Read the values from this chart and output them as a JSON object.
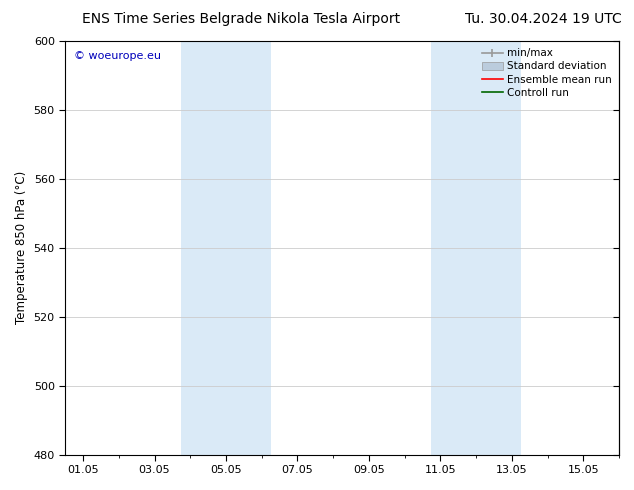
{
  "title_left": "ENS Time Series Belgrade Nikola Tesla Airport",
  "title_right": "Tu. 30.04.2024 19 UTC",
  "ylabel": "Temperature 850 hPa (°C)",
  "ylim": [
    480,
    600
  ],
  "yticks": [
    480,
    500,
    520,
    540,
    560,
    580,
    600
  ],
  "xtick_labels": [
    "01.05",
    "03.05",
    "05.05",
    "07.05",
    "09.05",
    "11.05",
    "13.05",
    "15.05"
  ],
  "xtick_positions": [
    1,
    3,
    5,
    7,
    9,
    11,
    13,
    15
  ],
  "xlim": [
    0.5,
    16.0
  ],
  "shade_bands": [
    {
      "x_start": 3.75,
      "x_end": 6.25,
      "color": "#daeaf7"
    },
    {
      "x_start": 10.75,
      "x_end": 13.25,
      "color": "#daeaf7"
    }
  ],
  "bg_color": "#ffffff",
  "grid_color": "#cccccc",
  "watermark_text": "© woeurope.eu",
  "watermark_color": "#0000bb",
  "legend_labels": [
    "min/max",
    "Standard deviation",
    "Ensemble mean run",
    "Controll run"
  ],
  "legend_line_colors": [
    "#999999",
    "#bbccdd",
    "#ff0000",
    "#006600"
  ],
  "title_fontsize": 10,
  "tick_fontsize": 8,
  "ylabel_fontsize": 8.5,
  "legend_fontsize": 7.5
}
